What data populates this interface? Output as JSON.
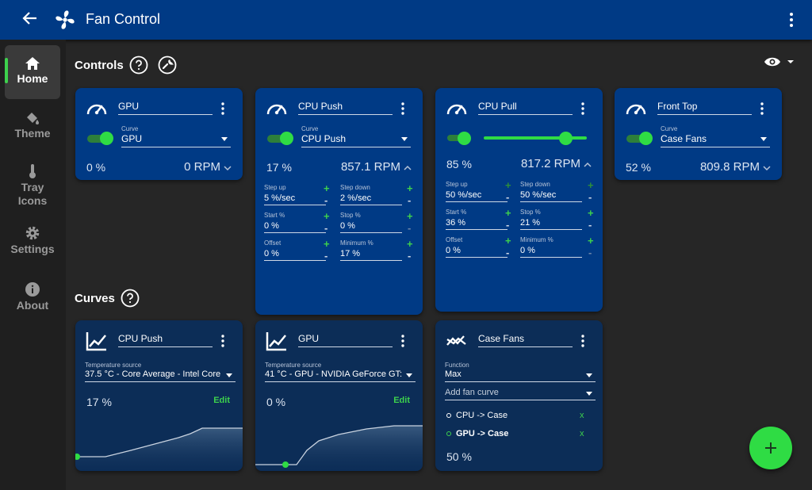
{
  "header": {
    "title": "Fan Control"
  },
  "sidebar": {
    "items": [
      {
        "label": "Home",
        "icon": "home-icon"
      },
      {
        "label": "Theme",
        "icon": "paint-bucket-icon"
      },
      {
        "label": "Tray Icons",
        "icon": "thermometer-icon"
      },
      {
        "label": "Settings",
        "icon": "gear-icon"
      },
      {
        "label": "About",
        "icon": "info-icon"
      }
    ]
  },
  "controls": {
    "title": "Controls",
    "cards": [
      {
        "name": "GPU",
        "curve_label": "Curve",
        "curve": "GPU",
        "percent": "0 %",
        "rpm": "0 RPM",
        "expanded": false
      },
      {
        "name": "CPU Push",
        "curve_label": "Curve",
        "curve": "CPU Push",
        "percent": "17 %",
        "rpm": "857.1 RPM",
        "expanded": true,
        "fields": [
          {
            "label": "Step up",
            "value": "5 %/sec"
          },
          {
            "label": "Step down",
            "value": "2 %/sec"
          },
          {
            "label": "Start %",
            "value": "0 %"
          },
          {
            "label": "Stop %",
            "value": "0 %"
          },
          {
            "label": "Offset",
            "value": "0 %"
          },
          {
            "label": "Minimum %",
            "value": "17 %"
          }
        ]
      },
      {
        "name": "CPU Pull",
        "percent": "85 %",
        "rpm": "817.2 RPM",
        "expanded": true,
        "manual_value": 0.85,
        "fields": [
          {
            "label": "Step up",
            "value": "50 %/sec"
          },
          {
            "label": "Step down",
            "value": "50 %/sec"
          },
          {
            "label": "Start %",
            "value": "36 %"
          },
          {
            "label": "Stop %",
            "value": "21 %"
          },
          {
            "label": "Offset",
            "value": "0 %"
          },
          {
            "label": "Minimum %",
            "value": "0 %"
          }
        ]
      },
      {
        "name": "Front Top",
        "curve_label": "Curve",
        "curve": "Case Fans",
        "percent": "52 %",
        "rpm": "809.8 RPM",
        "expanded": false
      }
    ]
  },
  "curves": {
    "title": "Curves",
    "cards": [
      {
        "name": "CPU Push",
        "source_label": "Temperature source",
        "source": "37.5 °C - Core Average - Intel Core",
        "percent": "17 %",
        "edit": "Edit"
      },
      {
        "name": "GPU",
        "source_label": "Temperature source",
        "source": "41 °C - GPU - NVIDIA GeForce GT:",
        "percent": "0 %",
        "edit": "Edit"
      },
      {
        "name": "Case Fans",
        "function_label": "Function",
        "function": "Max",
        "add_placeholder": "Add fan curve",
        "items": [
          {
            "label": "CPU -> Case",
            "remove": "x"
          },
          {
            "label": "GPU -> Case",
            "remove": "x"
          }
        ],
        "percent": "50 %"
      }
    ]
  },
  "colors": {
    "header": "#003a85",
    "card": "#003a85",
    "curve_card": "#0c2d57",
    "accent": "#2fdc44",
    "background": "#262626",
    "sidebar": "#1f1f1f"
  }
}
